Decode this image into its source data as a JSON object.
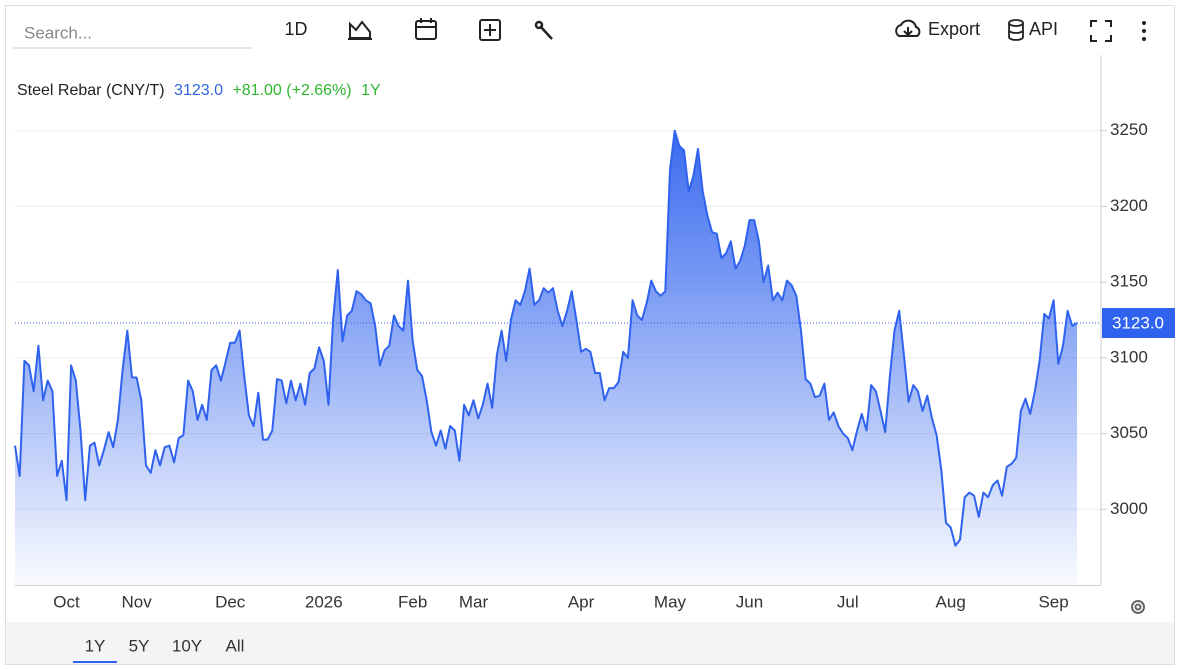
{
  "toolbar": {
    "search_placeholder": "Search...",
    "interval": "1D",
    "export": "Export",
    "api": "API"
  },
  "range_buttons": [
    "1Y",
    "5Y",
    "10Y",
    "All"
  ],
  "chart_data": {
    "type": "area",
    "title": "Steel Rebar (CNY/T)",
    "price_label": "3123.0",
    "change": "+81.00 (+2.66%)",
    "period": "1Y",
    "color": "#2f62ee",
    "categories": [
      null,
      null,
      null,
      null,
      null,
      null,
      null,
      null,
      null,
      null,
      null,
      "Oct",
      null,
      null,
      null,
      null,
      null,
      null,
      null,
      null,
      null,
      null,
      null,
      null,
      null,
      null,
      "Nov",
      null,
      null,
      null,
      null,
      null,
      null,
      null,
      null,
      null,
      null,
      null,
      null,
      null,
      null,
      null,
      null,
      null,
      null,
      null,
      "Dec",
      null,
      null,
      null,
      null,
      null,
      null,
      null,
      null,
      null,
      null,
      null,
      null,
      null,
      null,
      null,
      null,
      null,
      null,
      null,
      "2026",
      null,
      null,
      null,
      null,
      null,
      null,
      null,
      null,
      null,
      null,
      null,
      null,
      null,
      null,
      null,
      null,
      null,
      null,
      "Feb",
      null,
      null,
      null,
      null,
      null,
      null,
      null,
      null,
      null,
      null,
      null,
      null,
      "Mar",
      null,
      null,
      null,
      null,
      null,
      null,
      null,
      null,
      null,
      null,
      null,
      null,
      null,
      null,
      null,
      null,
      null,
      null,
      null,
      null,
      null,
      null,
      "Apr",
      null,
      null,
      null,
      null,
      null,
      null,
      null,
      null,
      null,
      null,
      null,
      null,
      null,
      null,
      null,
      null,
      null,
      null,
      "May",
      null,
      null,
      null,
      null,
      null,
      null,
      null,
      null,
      null,
      null,
      null,
      null,
      null,
      null,
      null,
      null,
      "Jun",
      null,
      null,
      null,
      null,
      null,
      null,
      null,
      null,
      null,
      null,
      null,
      null,
      null,
      null,
      null,
      null,
      null,
      null,
      null,
      null,
      "Jul",
      null,
      null,
      null,
      null,
      null,
      null,
      null,
      null,
      null,
      null,
      null,
      null,
      null,
      null,
      null,
      null,
      null,
      null,
      null,
      null,
      null,
      "Aug",
      null,
      null,
      null,
      null,
      null,
      null,
      null,
      null,
      null,
      null,
      null,
      null,
      null,
      null,
      null,
      null,
      null,
      null,
      null,
      null,
      null,
      "Sep",
      null,
      null,
      null,
      null,
      null
    ],
    "values": [
      3042,
      3022,
      3098,
      3095,
      3078,
      3108,
      3072,
      3085,
      3078,
      3022,
      3032,
      3006,
      3095,
      3085,
      3052,
      3006,
      3042,
      3044,
      3029,
      3039,
      3051,
      3041,
      3059,
      3092,
      3118,
      3087,
      3087,
      3072,
      3029,
      3024,
      3039,
      3029,
      3041,
      3042,
      3031,
      3047,
      3049,
      3085,
      3078,
      3059,
      3069,
      3059,
      3092,
      3095,
      3085,
      3097,
      3110,
      3110,
      3118,
      3088,
      3062,
      3055,
      3077,
      3046,
      3046,
      3052,
      3086,
      3085,
      3070,
      3085,
      3072,
      3083,
      3069,
      3090,
      3093,
      3107,
      3098,
      3069,
      3125,
      3158,
      3111,
      3128,
      3131,
      3144,
      3142,
      3138,
      3136,
      3121,
      3095,
      3105,
      3108,
      3128,
      3121,
      3118,
      3151,
      3111,
      3092,
      3088,
      3072,
      3051,
      3042,
      3052,
      3040,
      3055,
      3052,
      3032,
      3069,
      3062,
      3072,
      3060,
      3069,
      3083,
      3067,
      3102,
      3118,
      3098,
      3125,
      3138,
      3135,
      3144,
      3159,
      3135,
      3138,
      3146,
      3143,
      3146,
      3131,
      3121,
      3131,
      3144,
      3125,
      3104,
      3106,
      3104,
      3090,
      3090,
      3072,
      3080,
      3080,
      3084,
      3104,
      3100,
      3138,
      3128,
      3125,
      3136,
      3151,
      3144,
      3141,
      3144,
      3224,
      3250,
      3240,
      3237,
      3210,
      3220,
      3238,
      3210,
      3194,
      3183,
      3182,
      3166,
      3169,
      3177,
      3159,
      3164,
      3174,
      3191,
      3191,
      3177,
      3150,
      3161,
      3138,
      3143,
      3138,
      3151,
      3148,
      3141,
      3118,
      3086,
      3083,
      3074,
      3075,
      3083,
      3059,
      3064,
      3055,
      3050,
      3047,
      3039,
      3052,
      3063,
      3052,
      3082,
      3078,
      3065,
      3051,
      3088,
      3118,
      3131,
      3102,
      3071,
      3082,
      3078,
      3065,
      3075,
      3060,
      3049,
      3026,
      2991,
      2988,
      2976,
      2980,
      3008,
      3011,
      3009,
      2995,
      3011,
      3008,
      3016,
      3019,
      3009,
      3028,
      3030,
      3034,
      3065,
      3073,
      3063,
      3078,
      3098,
      3129,
      3126,
      3138,
      3096,
      3108,
      3131,
      3121,
      3123
    ],
    "ylim": [
      2950,
      3300
    ],
    "yticks": [
      3000,
      3050,
      3100,
      3150,
      3200,
      3250
    ],
    "grid": true
  }
}
